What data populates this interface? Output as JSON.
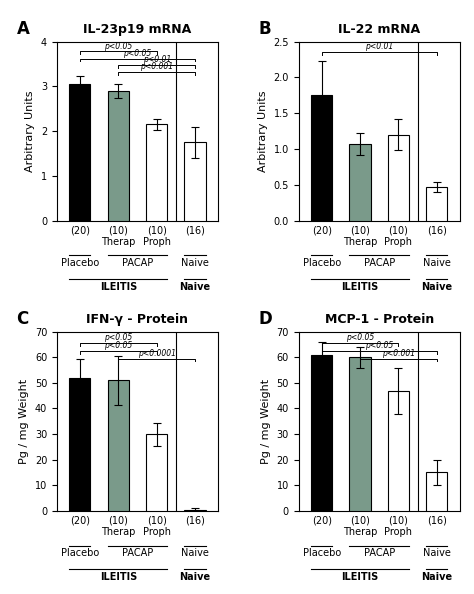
{
  "chart_data": [
    {
      "type": "bar",
      "panel_label": "A",
      "title": "IL-23p19 mRNA",
      "ylabel": "Arbitrary Units",
      "categories": [
        "(20)",
        "(10)\nTherap",
        "(10)\nProph",
        "(16)"
      ],
      "values": [
        3.05,
        2.9,
        2.15,
        1.75
      ],
      "errors": [
        0.18,
        0.15,
        0.12,
        0.35
      ],
      "colors": [
        "black",
        "#7a9a8a",
        "white",
        "white"
      ],
      "ylim": [
        0,
        4
      ],
      "yticks": [
        0,
        1,
        2,
        3,
        4
      ],
      "significance": [
        {
          "x1": 0,
          "x2": 2,
          "y": 3.78,
          "label": "p<0.05"
        },
        {
          "x1": 0,
          "x2": 3,
          "y": 3.62,
          "label": "p<0.05"
        },
        {
          "x1": 1,
          "x2": 3,
          "y": 3.47,
          "label": "p<0.01"
        },
        {
          "x1": 1,
          "x2": 3,
          "y": 3.32,
          "label": "p<0.001"
        }
      ],
      "group_rows": [
        [
          {
            "label": "Placebo",
            "span": 1
          },
          {
            "label": "PACAP",
            "span": 2
          },
          {
            "label": "Naive",
            "span": 1
          }
        ],
        [
          {
            "label": "ILEITIS",
            "span": 3
          },
          {
            "label": "Naive",
            "span": 1
          }
        ]
      ]
    },
    {
      "type": "bar",
      "panel_label": "B",
      "title": "IL-22 mRNA",
      "ylabel": "Arbitrary Units",
      "categories": [
        "(20)",
        "(10)\nTherap",
        "(10)\nProph",
        "(16)"
      ],
      "values": [
        1.75,
        1.07,
        1.2,
        0.47
      ],
      "errors": [
        0.48,
        0.15,
        0.22,
        0.07
      ],
      "colors": [
        "black",
        "#7a9a8a",
        "white",
        "white"
      ],
      "ylim": [
        0,
        2.5
      ],
      "yticks": [
        0.0,
        0.5,
        1.0,
        1.5,
        2.0,
        2.5
      ],
      "significance": [
        {
          "x1": 0,
          "x2": 3,
          "y": 2.35,
          "label": "p<0.01"
        }
      ],
      "group_rows": [
        [
          {
            "label": "Placebo",
            "span": 1
          },
          {
            "label": "PACAP",
            "span": 2
          },
          {
            "label": "Naive",
            "span": 1
          }
        ],
        [
          {
            "label": "ILEITIS",
            "span": 3
          },
          {
            "label": "Naive",
            "span": 1
          }
        ]
      ]
    },
    {
      "type": "bar",
      "panel_label": "C",
      "title": "IFN-γ - Protein",
      "ylabel": "Pg / mg Weight",
      "categories": [
        "(20)",
        "(10)\nTherap",
        "(10)\nProph",
        "(16)"
      ],
      "values": [
        52.0,
        51.0,
        30.0,
        0.5
      ],
      "errors": [
        7.5,
        9.5,
        4.5,
        0.5
      ],
      "colors": [
        "black",
        "#7a9a8a",
        "white",
        "white"
      ],
      "ylim": [
        0,
        70
      ],
      "yticks": [
        0,
        10,
        20,
        30,
        40,
        50,
        60,
        70
      ],
      "significance": [
        {
          "x1": 0,
          "x2": 2,
          "y": 65.5,
          "label": "p<0.05"
        },
        {
          "x1": 0,
          "x2": 2,
          "y": 62.5,
          "label": "p<0.05"
        },
        {
          "x1": 1,
          "x2": 3,
          "y": 59.5,
          "label": "p<0.0001"
        }
      ],
      "group_rows": [
        [
          {
            "label": "Placebo",
            "span": 1
          },
          {
            "label": "PACAP",
            "span": 2
          },
          {
            "label": "Naive",
            "span": 1
          }
        ],
        [
          {
            "label": "ILEITIS",
            "span": 3
          },
          {
            "label": "Naive",
            "span": 1
          }
        ]
      ]
    },
    {
      "type": "bar",
      "panel_label": "D",
      "title": "MCP-1 - Protein",
      "ylabel": "Pg / mg Weight",
      "categories": [
        "(20)",
        "(10)\nTherap",
        "(10)\nProph",
        "(16)"
      ],
      "values": [
        61.0,
        60.0,
        47.0,
        15.0
      ],
      "errors": [
        5.0,
        4.0,
        9.0,
        5.0
      ],
      "colors": [
        "black",
        "#7a9a8a",
        "white",
        "white"
      ],
      "ylim": [
        0,
        70
      ],
      "yticks": [
        0,
        10,
        20,
        30,
        40,
        50,
        60,
        70
      ],
      "significance": [
        {
          "x1": 0,
          "x2": 2,
          "y": 65.5,
          "label": "p<0.05"
        },
        {
          "x1": 0,
          "x2": 3,
          "y": 62.5,
          "label": "p<0.05"
        },
        {
          "x1": 1,
          "x2": 3,
          "y": 59.5,
          "label": "p<0.001"
        }
      ],
      "group_rows": [
        [
          {
            "label": "Placebo",
            "span": 1
          },
          {
            "label": "PACAP",
            "span": 2
          },
          {
            "label": "Naive",
            "span": 1
          }
        ],
        [
          {
            "label": "ILEITIS",
            "span": 3
          },
          {
            "label": "Naive",
            "span": 1
          }
        ]
      ]
    }
  ]
}
